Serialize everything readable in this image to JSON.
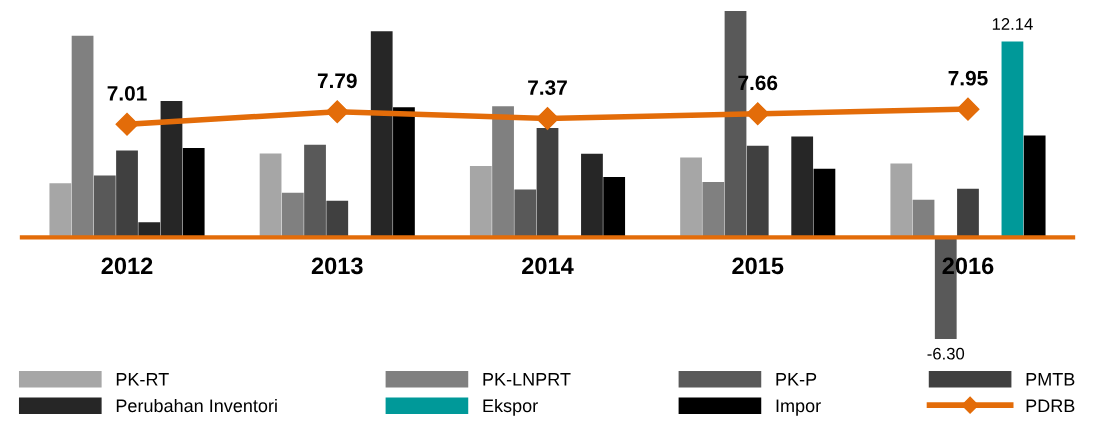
{
  "chart_data": {
    "type": "bar",
    "categories": [
      "2012",
      "2013",
      "2014",
      "2015",
      "2016"
    ],
    "series": [
      {
        "name": "PK-RT",
        "color": "#a6a6a6",
        "values": [
          3.36,
          5.2,
          4.43,
          4.95,
          4.58
        ]
      },
      {
        "name": "PK-LNPRT",
        "color": "#808080",
        "values": [
          12.5,
          2.76,
          8.13,
          3.43,
          2.33
        ]
      },
      {
        "name": "PK-P",
        "color": "#595959",
        "values": [
          3.83,
          5.75,
          2.97,
          14.04,
          -6.3
        ],
        "value_labels": [
          null,
          null,
          null,
          null,
          "-6.30"
        ]
      },
      {
        "name": "PMTB",
        "color": "#404040",
        "values": [
          5.39,
          2.27,
          6.78,
          5.68,
          3.02
        ]
      },
      {
        "name": "Perubahan Inventori",
        "color": "#262626",
        "values": [
          0.94,
          null,
          null,
          null,
          null
        ]
      },
      {
        "name": "Ekspor",
        "color": "#009999",
        "colors": [
          "#262626",
          "#262626",
          "#262626",
          "#262626",
          "#009999"
        ],
        "values": [
          8.45,
          12.77,
          5.18,
          6.26,
          12.14
        ],
        "value_labels": [
          null,
          null,
          null,
          null,
          "12.14"
        ]
      },
      {
        "name": "Impor",
        "color": "#000000",
        "values": [
          5.54,
          8.06,
          3.74,
          4.25,
          6.31
        ]
      },
      {
        "name": "PDRB",
        "type": "line",
        "color": "#e36c09",
        "values": [
          7.01,
          7.79,
          7.37,
          7.66,
          7.95
        ],
        "value_labels": [
          "7.01",
          "7.79",
          "7.37",
          "7.66",
          "7.95"
        ]
      }
    ],
    "tick_labels": "x",
    "marker": "diamond",
    "legend": "bottom"
  }
}
